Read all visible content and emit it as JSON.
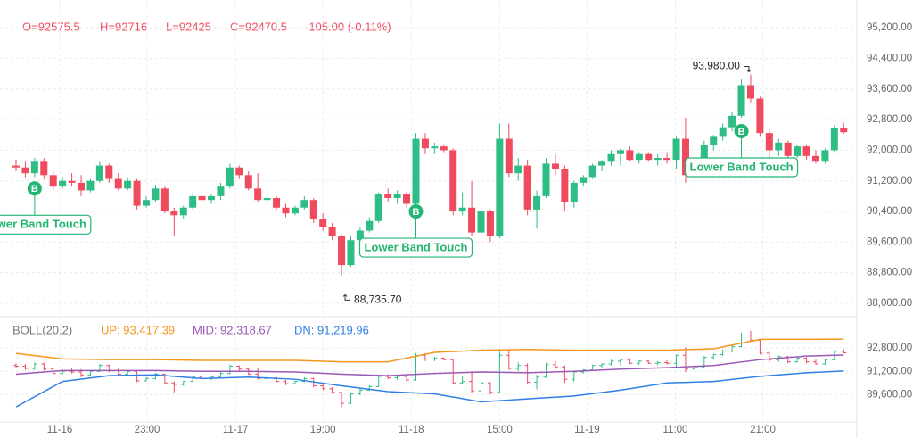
{
  "chart_data": [
    {
      "type": "candlestick",
      "legend_items": [
        "O=92575.5",
        "H=92716",
        "L=92425",
        "C=92470.5"
      ],
      "change": "-105.00 (-0.11%)",
      "up_color": "#2ebd85",
      "down_color": "#ef4a5e",
      "ylim": [
        87720,
        95600
      ],
      "yticks": [
        {
          "value": 95200,
          "label": "95,200.00"
        },
        {
          "value": 94400,
          "label": "94,400.00"
        },
        {
          "value": 93600,
          "label": "93,600.00"
        },
        {
          "value": 92800,
          "label": "92,800.00"
        },
        {
          "value": 92000,
          "label": "92,000.00"
        },
        {
          "value": 91200,
          "label": "91,200.00"
        },
        {
          "value": 90400,
          "label": "90,400.00"
        },
        {
          "value": 89600,
          "label": "89,600.00"
        },
        {
          "value": 88800,
          "label": "88,800.00"
        },
        {
          "value": 88000,
          "label": "88,000.00"
        }
      ],
      "xticks": [
        {
          "value": 4.7,
          "label": "11-16"
        },
        {
          "value": 14.1,
          "label": "23:00"
        },
        {
          "value": 23.6,
          "label": "11-17"
        },
        {
          "value": 33,
          "label": "19:00"
        },
        {
          "value": 42.5,
          "label": "11-18"
        },
        {
          "value": 52,
          "label": "15:00"
        },
        {
          "value": 61.4,
          "label": "11-19"
        },
        {
          "value": 70.9,
          "label": "11:00"
        },
        {
          "value": 80.3,
          "label": "21:00"
        }
      ],
      "grid": true,
      "ohlc": [
        [
          91600,
          91750,
          91450,
          91550
        ],
        [
          91550,
          91700,
          91300,
          91400
        ],
        [
          91400,
          91800,
          91300,
          91700
        ],
        [
          91700,
          91800,
          91250,
          91350
        ],
        [
          91350,
          91450,
          90950,
          91050
        ],
        [
          91050,
          91300,
          91000,
          91200
        ],
        [
          91200,
          91400,
          91050,
          91150
        ],
        [
          91150,
          91350,
          90800,
          90950
        ],
        [
          90950,
          91250,
          90900,
          91200
        ],
        [
          91200,
          91700,
          91150,
          91600
        ],
        [
          91600,
          91650,
          91150,
          91250
        ],
        [
          91250,
          91400,
          90950,
          91000
        ],
        [
          91000,
          91300,
          90950,
          91200
        ],
        [
          91200,
          91250,
          90450,
          90550
        ],
        [
          90550,
          90800,
          90500,
          90700
        ],
        [
          90700,
          91100,
          90650,
          91000
        ],
        [
          91000,
          91050,
          90350,
          90400
        ],
        [
          90400,
          90500,
          89750,
          90300
        ],
        [
          90300,
          90550,
          90200,
          90500
        ],
        [
          90500,
          90900,
          90450,
          90800
        ],
        [
          90800,
          90950,
          90650,
          90700
        ],
        [
          90700,
          90850,
          90600,
          90800
        ],
        [
          90800,
          91150,
          90700,
          91050
        ],
        [
          91050,
          91650,
          91000,
          91550
        ],
        [
          91550,
          91600,
          91250,
          91350
        ],
        [
          91350,
          91450,
          90950,
          91000
        ],
        [
          91000,
          91400,
          90650,
          90700
        ],
        [
          90700,
          90850,
          90550,
          90750
        ],
        [
          90750,
          90800,
          90450,
          90500
        ],
        [
          90500,
          90600,
          90250,
          90350
        ],
        [
          90350,
          90550,
          90300,
          90500
        ],
        [
          90500,
          90800,
          90450,
          90700
        ],
        [
          90700,
          90750,
          90100,
          90200
        ],
        [
          90200,
          90350,
          89900,
          90000
        ],
        [
          90000,
          90100,
          89650,
          89750
        ],
        [
          89750,
          89800,
          88735.7,
          89000
        ],
        [
          89000,
          89750,
          88950,
          89650
        ],
        [
          89650,
          90000,
          89550,
          89900
        ],
        [
          89900,
          90250,
          89850,
          90150
        ],
        [
          90150,
          90900,
          90100,
          90850
        ],
        [
          90850,
          91000,
          90650,
          90750
        ],
        [
          90750,
          90950,
          90600,
          90850
        ],
        [
          90850,
          90900,
          90500,
          90600
        ],
        [
          90600,
          92450,
          90550,
          92300
        ],
        [
          92300,
          92450,
          91900,
          92050
        ],
        [
          92050,
          92200,
          91900,
          92100
        ],
        [
          92100,
          92150,
          91950,
          92000
        ],
        [
          92000,
          92050,
          90300,
          90400
        ],
        [
          90400,
          90900,
          90300,
          90500
        ],
        [
          90500,
          91200,
          89750,
          89850
        ],
        [
          89850,
          90500,
          89700,
          90400
        ],
        [
          90400,
          90450,
          89600,
          89750
        ],
        [
          89750,
          92700,
          89700,
          92300
        ],
        [
          92300,
          92700,
          91300,
          91400
        ],
        [
          91400,
          91800,
          91200,
          91600
        ],
        [
          91600,
          91750,
          90300,
          90450
        ],
        [
          90450,
          90950,
          89950,
          90800
        ],
        [
          90800,
          91800,
          90750,
          91650
        ],
        [
          91650,
          91900,
          91350,
          91500
        ],
        [
          91500,
          91600,
          90400,
          90650
        ],
        [
          90650,
          91200,
          90500,
          91150
        ],
        [
          91150,
          91350,
          91050,
          91300
        ],
        [
          91300,
          91650,
          91250,
          91600
        ],
        [
          91600,
          91750,
          91450,
          91700
        ],
        [
          91700,
          92000,
          91600,
          91900
        ],
        [
          91900,
          92050,
          91600,
          92000
        ],
        [
          92000,
          92100,
          91700,
          91750
        ],
        [
          91750,
          91950,
          91650,
          91900
        ],
        [
          91900,
          91950,
          91700,
          91750
        ],
        [
          91750,
          91900,
          91600,
          91800
        ],
        [
          91800,
          91950,
          91650,
          91750
        ],
        [
          91750,
          92350,
          91500,
          92300
        ],
        [
          92300,
          92850,
          91150,
          91350
        ],
        [
          91350,
          91600,
          91050,
          91500
        ],
        [
          91500,
          92250,
          91450,
          92150
        ],
        [
          92150,
          92400,
          92000,
          92350
        ],
        [
          92350,
          92700,
          92250,
          92600
        ],
        [
          92600,
          93000,
          92500,
          92900
        ],
        [
          92900,
          93850,
          92850,
          93700
        ],
        [
          93700,
          93980,
          93250,
          93350
        ],
        [
          93350,
          93400,
          92350,
          92450
        ],
        [
          92450,
          92550,
          91800,
          92000
        ],
        [
          92000,
          92300,
          91850,
          92200
        ],
        [
          92200,
          92250,
          91750,
          91850
        ],
        [
          91850,
          92150,
          91800,
          92100
        ],
        [
          92100,
          92150,
          91750,
          91850
        ],
        [
          91850,
          92000,
          91650,
          91700
        ],
        [
          91700,
          92050,
          91650,
          92000
        ],
        [
          92000,
          92650,
          91950,
          92575.5
        ],
        [
          92575.5,
          92716,
          92425,
          92470.5
        ]
      ],
      "annotations": [
        {
          "label": "93,980.00",
          "value": 93980,
          "index": 79,
          "side": "high"
        },
        {
          "label": "88,735.70",
          "value": 88735.7,
          "index": 35,
          "side": "low"
        }
      ],
      "signals": [
        {
          "index": 2,
          "value": 91000,
          "marker": "B",
          "label": "Lower Band Touch"
        },
        {
          "index": 43,
          "value": 90400,
          "marker": "B",
          "label": "Lower Band Touch"
        },
        {
          "index": 78,
          "value": 92500,
          "marker": "B",
          "label": "Lower Band Touch"
        }
      ],
      "signal_color": "#22b573"
    },
    {
      "type": "bollinger",
      "title": "BOLL(20,2)",
      "ylim": [
        87900,
        94650
      ],
      "yticks": [
        {
          "value": 92800,
          "label": "92,800.00"
        },
        {
          "value": 91200,
          "label": "91,200.00"
        },
        {
          "value": 89600,
          "label": "89,600.00"
        }
      ],
      "x": [
        0,
        5,
        10,
        15,
        20,
        25,
        30,
        35,
        40,
        45,
        50,
        55,
        60,
        65,
        70,
        75,
        80,
        85,
        89
      ],
      "series": [
        {
          "name": "UP: 93,417.39",
          "color": "#f5971d",
          "values": [
            92430,
            92050,
            92000,
            92000,
            91950,
            91950,
            91950,
            91850,
            91850,
            92500,
            92650,
            92700,
            92650,
            92650,
            92650,
            92750,
            93400,
            93400,
            93417.39
          ]
        },
        {
          "name": "MID: 92,318.67",
          "color": "#9b59b6",
          "values": [
            91000,
            91250,
            91250,
            91250,
            91200,
            91200,
            91150,
            91000,
            90900,
            91050,
            91150,
            91100,
            91200,
            91350,
            91450,
            91600,
            92000,
            92250,
            92318.67
          ]
        },
        {
          "name": "DN: 91,219.96",
          "color": "#2f7fe6",
          "values": [
            88750,
            90500,
            90900,
            90950,
            90700,
            90800,
            90650,
            90200,
            89800,
            89650,
            89100,
            89300,
            89500,
            89900,
            90400,
            90500,
            90850,
            91100,
            91219.96
          ]
        }
      ]
    }
  ]
}
